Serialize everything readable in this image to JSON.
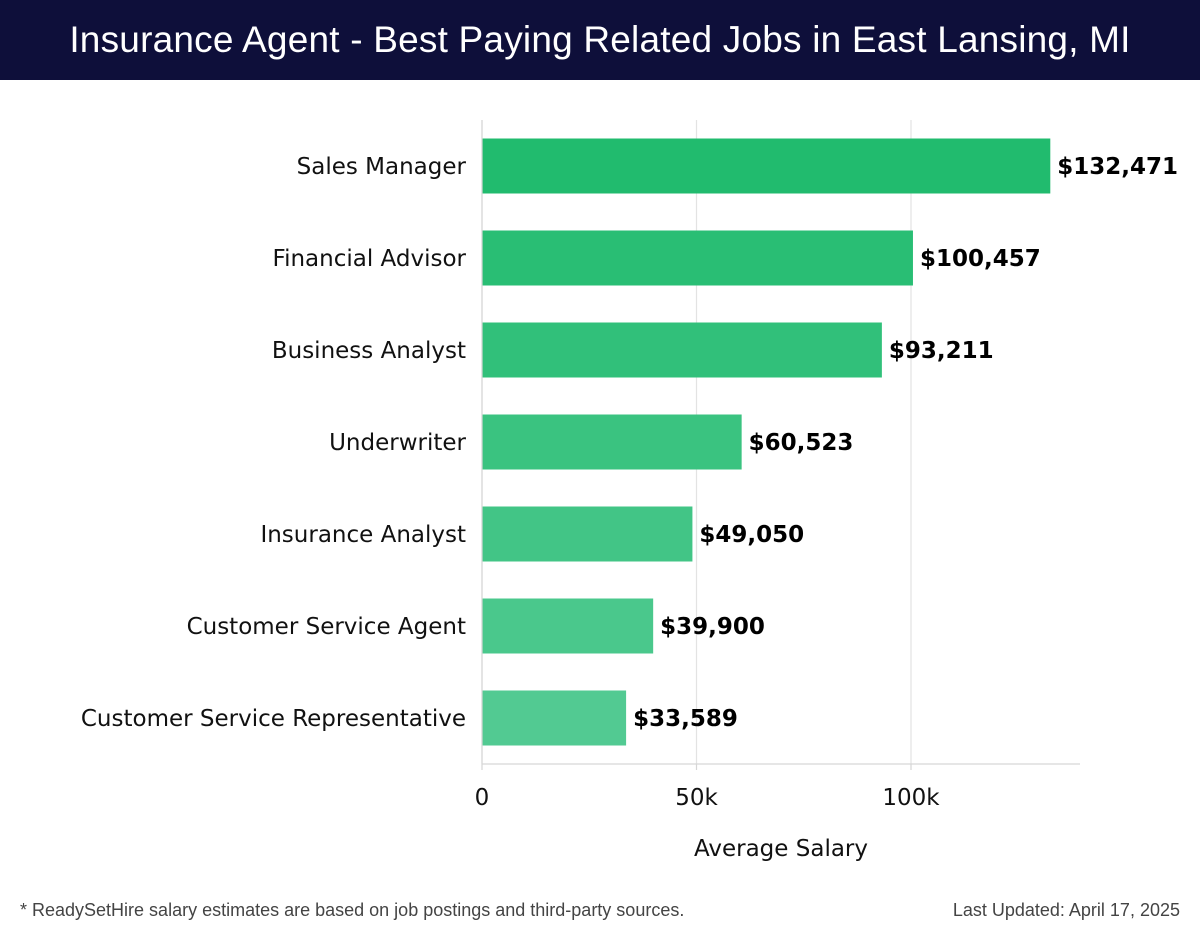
{
  "header": {
    "title": "Insurance Agent - Best Paying Related Jobs in East Lansing, MI"
  },
  "chart_data": {
    "type": "bar",
    "orientation": "horizontal",
    "title": "Insurance Agent - Best Paying Related Jobs in East Lansing, MI",
    "categories": [
      "Sales Manager",
      "Financial Advisor",
      "Business Analyst",
      "Underwriter",
      "Insurance Analyst",
      "Customer Service Agent",
      "Customer Service Representative"
    ],
    "values": [
      132471,
      100457,
      93211,
      60523,
      49050,
      39900,
      33589
    ],
    "value_labels": [
      "$132,471",
      "$100,457",
      "$93,211",
      "$60,523",
      "$49,050",
      "$39,900",
      "$33,589"
    ],
    "xlabel": "Average Salary",
    "ylabel": "",
    "xlim": [
      0,
      140000
    ],
    "xticks": [
      0,
      50000,
      100000
    ],
    "xtick_labels": [
      "0",
      "50k",
      "100k"
    ],
    "grid": true,
    "bar_color_dark": "#21bb6e",
    "bar_color_light": "#52ca92"
  },
  "footer": {
    "note": "* ReadySetHire salary estimates are based on job postings and third-party sources.",
    "updated": "Last Updated: April 17, 2025"
  }
}
